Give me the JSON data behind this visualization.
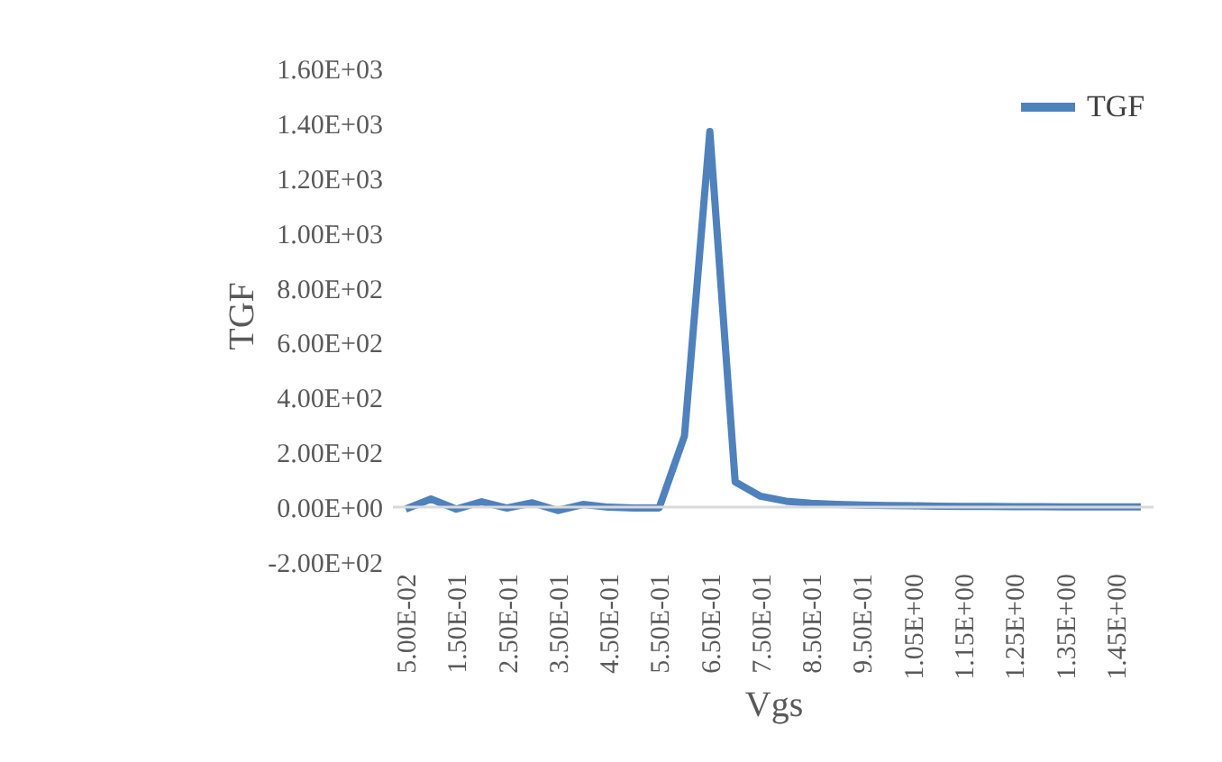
{
  "chart_data": {
    "type": "line",
    "xlabel": "Vgs",
    "ylabel": "TGF",
    "categories": [
      "5.00E-02",
      null,
      "1.50E-01",
      null,
      "2.50E-01",
      null,
      "3.50E-01",
      null,
      "4.50E-01",
      null,
      "5.50E-01",
      null,
      "6.50E-01",
      null,
      "7.50E-01",
      null,
      "8.50E-01",
      null,
      "9.50E-01",
      null,
      "1.05E+00",
      null,
      "1.15E+00",
      null,
      "1.25E+00",
      null,
      "1.35E+00",
      null,
      "1.45E+00",
      null
    ],
    "series": [
      {
        "name": "TGF",
        "color": "#4f81bd",
        "values": [
          -7,
          30,
          -7,
          20,
          -3,
          16,
          -12,
          10,
          0,
          -3,
          -3,
          260,
          1370,
          92,
          40,
          22,
          14,
          10,
          8,
          6,
          5,
          4,
          3,
          3,
          2,
          2,
          1,
          1,
          1,
          1
        ]
      }
    ],
    "ylim": [
      -200,
      1600
    ],
    "yticks": [
      {
        "value": -200,
        "label": "-2.00E+02"
      },
      {
        "value": 0,
        "label": "0.00E+00"
      },
      {
        "value": 200,
        "label": "2.00E+02"
      },
      {
        "value": 400,
        "label": "4.00E+02"
      },
      {
        "value": 600,
        "label": "6.00E+02"
      },
      {
        "value": 800,
        "label": "8.00E+02"
      },
      {
        "value": 1000,
        "label": "1.00E+03"
      },
      {
        "value": 1200,
        "label": "1.20E+03"
      },
      {
        "value": 1400,
        "label": "1.40E+03"
      },
      {
        "value": 1600,
        "label": "1.60E+03"
      }
    ],
    "grid": false,
    "legend": "top right",
    "marker": "none",
    "line_style": "solid"
  }
}
